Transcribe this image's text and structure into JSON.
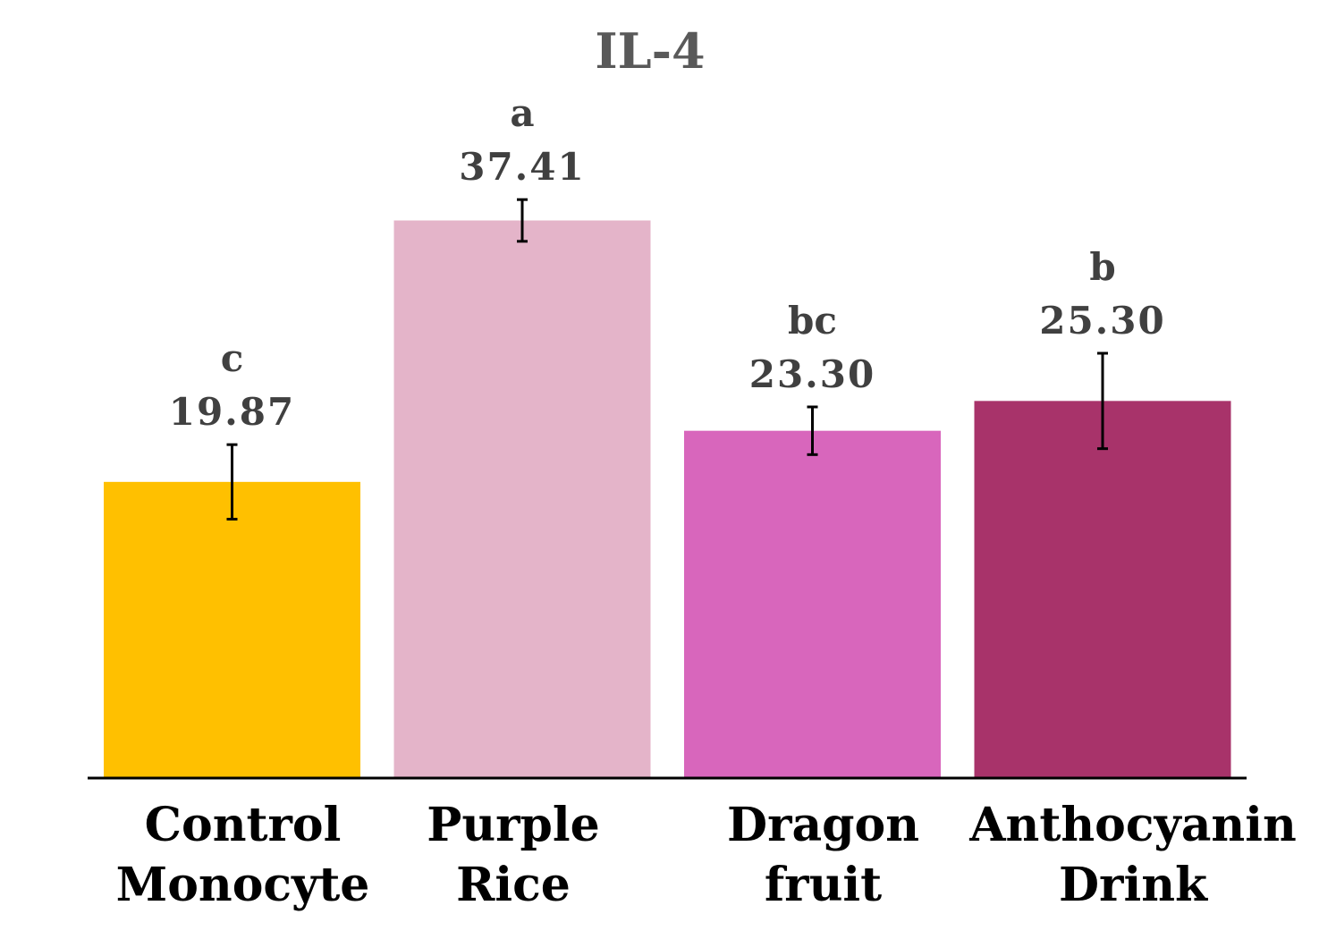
{
  "chart_data": {
    "type": "bar",
    "title": "IL-4",
    "xlabel": "",
    "ylabel": "",
    "ylim": [
      0,
      45
    ],
    "grid": false,
    "categories": [
      [
        "Control",
        "Monocyte"
      ],
      [
        "Purple",
        "Rice"
      ],
      [
        "Dragon",
        "fruit"
      ],
      [
        "Anthocyanin",
        "Drink"
      ]
    ],
    "values": [
      19.87,
      37.41,
      23.3,
      25.3
    ],
    "value_labels": [
      "19.87",
      "37.41",
      "23.30",
      "25.30"
    ],
    "significance": [
      "c",
      "a",
      "bc",
      "b"
    ],
    "error": [
      2.5,
      1.4,
      1.6,
      3.2
    ],
    "colors": [
      "#FFC000",
      "#E4B4C9",
      "#D866BC",
      "#A8336A"
    ]
  }
}
